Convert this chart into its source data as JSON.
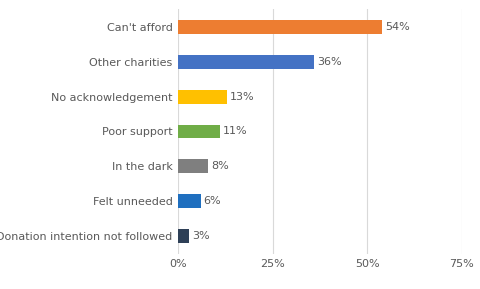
{
  "categories": [
    "Donation intention not followed",
    "Felt unneeded",
    "In the dark",
    "Poor support",
    "No acknowledgement",
    "Other charities",
    "Can't afford"
  ],
  "values": [
    3,
    6,
    8,
    11,
    13,
    36,
    54
  ],
  "colors": [
    "#2E4057",
    "#1F6FBF",
    "#7F7F7F",
    "#70AD47",
    "#FFC000",
    "#4472C4",
    "#ED7D31"
  ],
  "labels": [
    "3%",
    "6%",
    "8%",
    "11%",
    "13%",
    "36%",
    "54%"
  ],
  "xlim": [
    0,
    75
  ],
  "xticks": [
    0,
    25,
    50,
    75
  ],
  "xticklabels": [
    "0%",
    "25%",
    "50%",
    "75%"
  ],
  "background_color": "#FFFFFF",
  "grid_color": "#D9D9D9",
  "label_color": "#595959",
  "tick_label_color": "#595959",
  "bar_label_color": "#595959",
  "bar_label_fontsize": 8,
  "ytick_fontsize": 8,
  "xtick_fontsize": 8,
  "bar_height": 0.4
}
